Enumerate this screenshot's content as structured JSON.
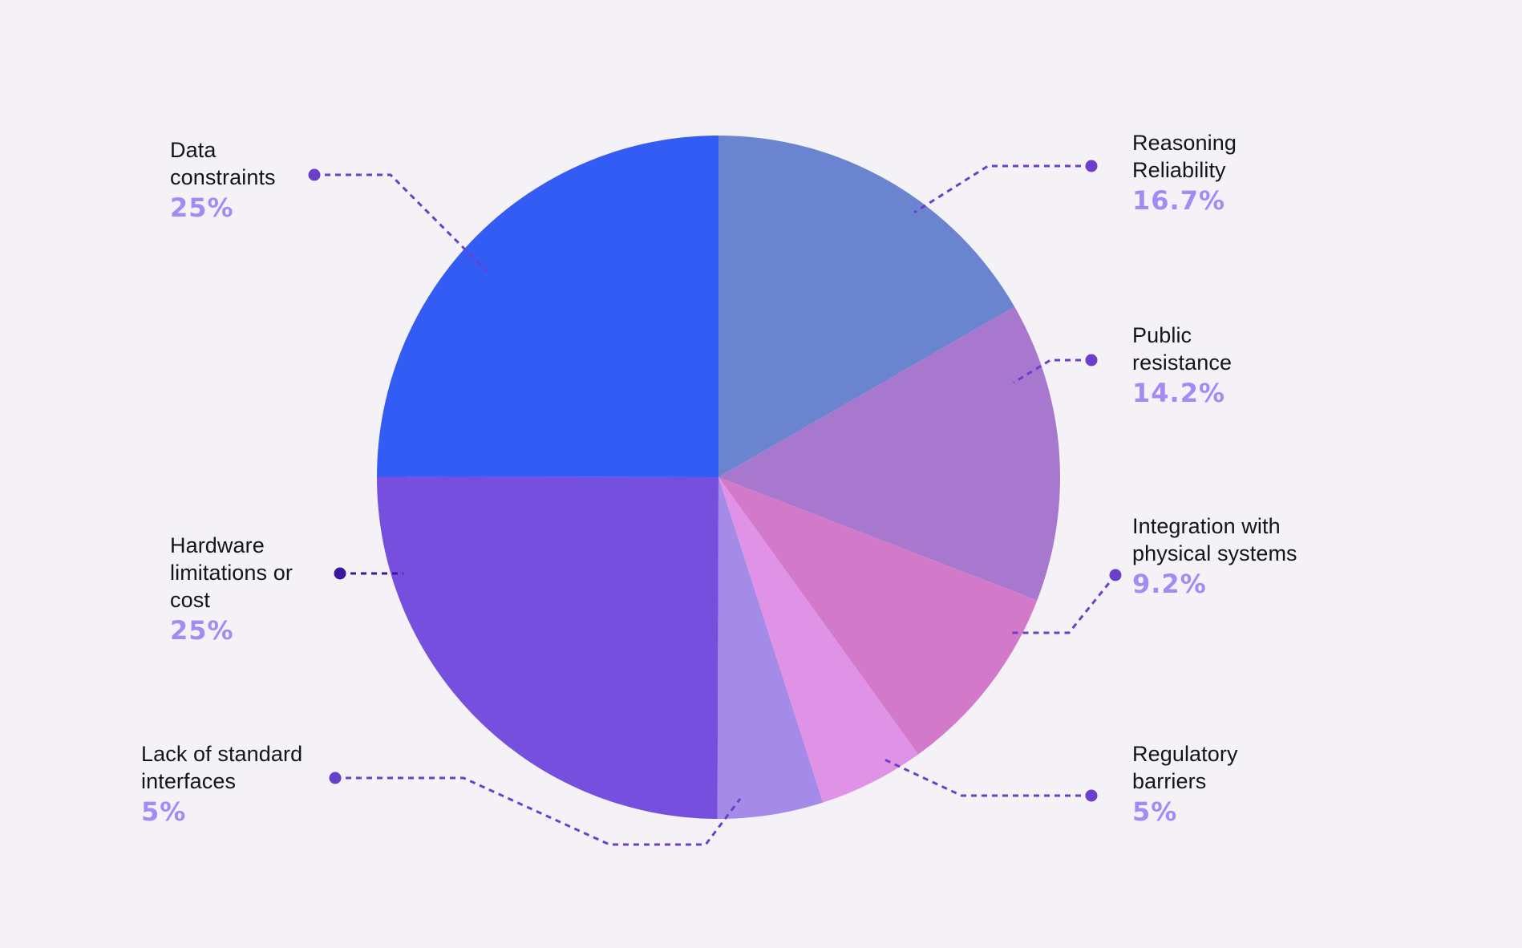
{
  "chart_data": {
    "type": "pie",
    "title": "",
    "start_angle_deg": 0,
    "direction": "clockwise",
    "slices": [
      {
        "label": "Reasoning Reliability",
        "value": 16.7,
        "display": "16.7%",
        "color": "#6b84cf"
      },
      {
        "label": "Public resistance",
        "value": 14.2,
        "display": "14.2%",
        "color": "#a878cf"
      },
      {
        "label": "Integration with physical systems",
        "value": 9.2,
        "display": "9.2%",
        "color": "#d279c9"
      },
      {
        "label": "Regulatory barriers",
        "value": 5,
        "display": "5%",
        "color": "#e092e6"
      },
      {
        "label": "Lack of standard interfaces",
        "value": 5,
        "display": "5%",
        "color": "#a58be8"
      },
      {
        "label": "Hardware limitations or cost",
        "value": 25,
        "display": "25%",
        "color": "#764fde"
      },
      {
        "label": "Data constraints",
        "value": 25,
        "display": "25%",
        "color": "#325cf3"
      }
    ],
    "legend_position": "callouts"
  },
  "labels": {
    "reasoning": {
      "name": "Reasoning\nReliability",
      "pct": "16.7%"
    },
    "public": {
      "name": "Public\nresistance",
      "pct": "14.2%"
    },
    "integration": {
      "name": "Integration with\nphysical systems",
      "pct": "9.2%"
    },
    "regulatory": {
      "name": "Regulatory\nbarriers",
      "pct": "5%"
    },
    "lack": {
      "name": "Lack of standard\ninterfaces",
      "pct": "5%"
    },
    "hardware": {
      "name": "Hardware\nlimitations or\ncost",
      "pct": "25%"
    },
    "data": {
      "name": "Data\nconstraints",
      "pct": "25%"
    }
  },
  "colors": {
    "background": "#f4f2f6",
    "leader_line": "#6a3fc9",
    "leader_line_hardware": "#3b17a0",
    "percent_text": "#a48af5",
    "label_text": "#15131c"
  }
}
